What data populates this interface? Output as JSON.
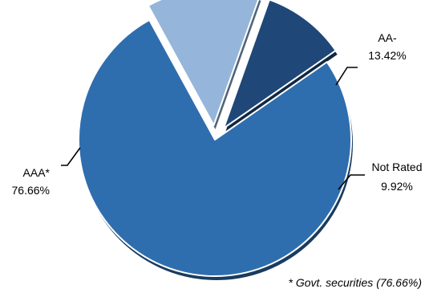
{
  "chart_data": {
    "type": "pie",
    "slices": [
      {
        "label": "AAA*",
        "value_text": "76.66%",
        "value": 76.66,
        "color": "#2F6EAE",
        "exploded": false
      },
      {
        "label": "AA-",
        "value_text": "13.42%",
        "value": 13.42,
        "color": "#95B6DA",
        "exploded": true
      },
      {
        "label": "Not Rated",
        "value_text": "9.92%",
        "value": 9.92,
        "color": "#1F4778",
        "exploded": true
      }
    ],
    "footnote": "* Govt. securities (76.66%)",
    "legend": "none"
  }
}
